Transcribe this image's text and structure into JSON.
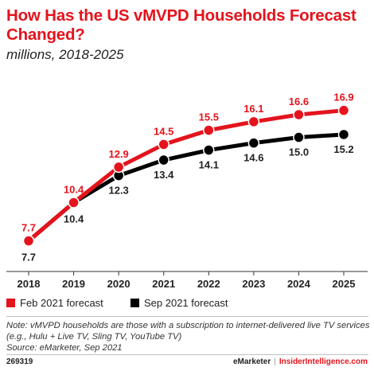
{
  "header": {
    "title": "How Has the US vMVPD Households Forecast Changed?",
    "subtitle": "millions, 2018-2025"
  },
  "chart_data": {
    "type": "line",
    "categories": [
      "2018",
      "2019",
      "2020",
      "2021",
      "2022",
      "2023",
      "2024",
      "2025"
    ],
    "series": [
      {
        "name": "Feb 2021 forecast",
        "color": "#e4131c",
        "values": [
          7.7,
          10.4,
          12.9,
          14.5,
          15.5,
          16.1,
          16.6,
          16.9
        ],
        "labels": [
          "7.7",
          "10.4",
          "12.9",
          "14.5",
          "15.5",
          "16.1",
          "16.6",
          "16.9"
        ]
      },
      {
        "name": "Sep 2021 forecast",
        "color": "#000000",
        "values": [
          7.7,
          10.4,
          12.3,
          13.4,
          14.1,
          14.6,
          15.0,
          15.2
        ],
        "labels": [
          "7.7",
          "10.4",
          "12.3",
          "13.4",
          "14.1",
          "14.6",
          "15.0",
          "15.2"
        ]
      }
    ],
    "ylim": [
      7,
      17.5
    ],
    "grid": false,
    "legend_position": "bottom-left"
  },
  "legend": {
    "items": [
      {
        "label": "Feb 2021 forecast",
        "color": "#e4131c"
      },
      {
        "label": "Sep 2021 forecast",
        "color": "#000000"
      }
    ]
  },
  "note": {
    "line1": "Note: vMVPD households are those with a subscription to internet-delivered live TV services",
    "line2": "(e.g., Hulu + Live TV, Sling TV, YouTube TV)",
    "line3": "Source: eMarketer, Sep 2021"
  },
  "footer": {
    "chart_id": "269319",
    "brand1": "eMarketer",
    "separator": "|",
    "brand2": "InsiderIntelligence.com"
  }
}
